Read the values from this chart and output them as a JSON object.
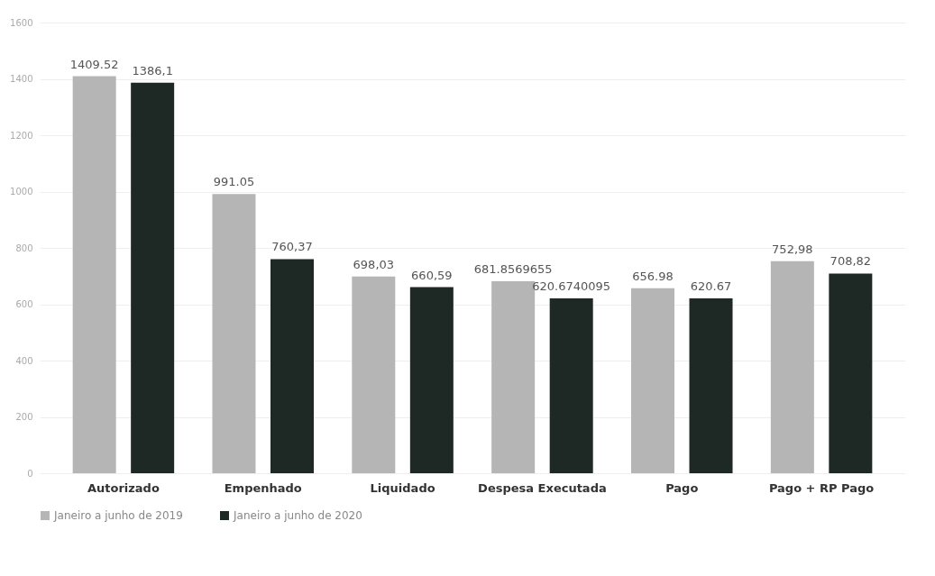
{
  "chart_data": {
    "type": "bar",
    "categories": [
      "Autorizado",
      "Empenhado",
      "Liquidado",
      "Despesa Executada",
      "Pago",
      "Pago + RP Pago"
    ],
    "series": [
      {
        "name": "Janeiro a junho de 2019",
        "color": "#b5b5b5",
        "values": [
          1409.52,
          991.05,
          698.03,
          681.8569655,
          656.98,
          752.98
        ],
        "value_labels": [
          "1409.52",
          "991.05",
          "698,03",
          "681.8569655",
          "656.98",
          "752,98"
        ]
      },
      {
        "name": "Janeiro a junho de 2020",
        "color": "#1e2824",
        "values": [
          1386.1,
          760.37,
          660.59,
          620.6740095,
          620.67,
          708.82
        ],
        "value_labels": [
          "1386,1",
          "760,37",
          "660,59",
          "620.6740095",
          "620.67",
          "708,82"
        ]
      }
    ],
    "ylim": [
      0,
      1600
    ],
    "yticks": [
      0,
      200,
      400,
      600,
      800,
      1000,
      1200,
      1400,
      1600
    ],
    "grid": "y",
    "legend": "bottom"
  }
}
